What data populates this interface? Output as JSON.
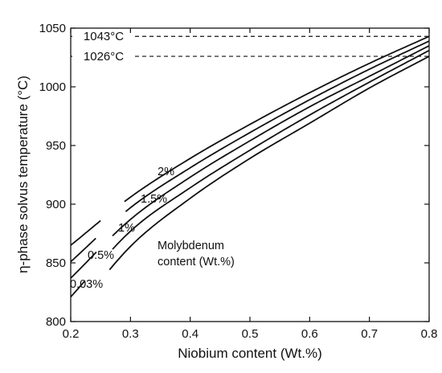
{
  "chart_data": {
    "type": "line",
    "xlabel": "Niobium content (Wt.%)",
    "ylabel": "η-phase solvus temperature (°C)",
    "xlim": [
      0.2,
      0.8
    ],
    "ylim": [
      800,
      1050
    ],
    "xticks": [
      "0.2",
      "0.3",
      "0.4",
      "0.5",
      "0.6",
      "0.7",
      "0.8"
    ],
    "yticks": [
      "800",
      "850",
      "900",
      "950",
      "1000",
      "1050"
    ],
    "grid": false,
    "annotation": [
      "Molybdenum",
      "content (Wt.%)"
    ],
    "reference_lines": [
      {
        "y": 1043,
        "label": "1043°C"
      },
      {
        "y": 1026,
        "label": "1026°C"
      }
    ],
    "series": [
      {
        "name": "2%",
        "x": [
          0.2,
          0.3,
          0.4,
          0.5,
          0.6,
          0.7,
          0.8
        ],
        "y": [
          865,
          906,
          939,
          968,
          995,
          1020,
          1043
        ]
      },
      {
        "name": "1.5%",
        "x": [
          0.2,
          0.3,
          0.4,
          0.5,
          0.6,
          0.7,
          0.8
        ],
        "y": [
          851,
          897,
          931,
          961,
          989,
          1015,
          1039
        ]
      },
      {
        "name": "1%",
        "x": [
          0.2,
          0.3,
          0.4,
          0.5,
          0.6,
          0.7,
          0.8
        ],
        "y": [
          837,
          887,
          923,
          954,
          983,
          1009,
          1035
        ]
      },
      {
        "name": "0.5%",
        "x": [
          0.2,
          0.3,
          0.4,
          0.5,
          0.6,
          0.7,
          0.8
        ],
        "y": [
          821,
          877,
          914,
          946,
          976,
          1004,
          1031
        ]
      },
      {
        "name": "0.03%",
        "x": [
          0.2,
          0.3,
          0.4,
          0.5,
          0.6,
          0.7,
          0.8
        ],
        "y": [
          803,
          864,
          905,
          939,
          969,
          999,
          1026
        ]
      }
    ],
    "label_gaps": [
      {
        "series": "2%",
        "x": [
          0.25,
          0.29
        ]
      },
      {
        "series": "1.5%",
        "x": [
          0.242,
          0.292
        ]
      },
      {
        "series": "1%",
        "x": [
          0.243,
          0.27
        ]
      },
      {
        "series": "0.5%",
        "x": [
          0.224,
          0.27
        ]
      },
      {
        "series": "0.03%",
        "x": [
          0.2,
          0.265
        ]
      }
    ]
  }
}
